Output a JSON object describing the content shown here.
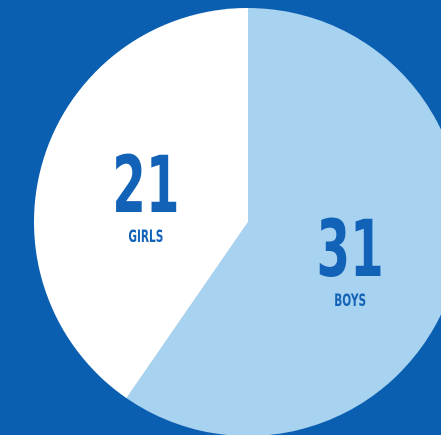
{
  "chart_data": {
    "type": "pie",
    "categories": [
      "GIRLS",
      "BOYS"
    ],
    "values": [
      21,
      31
    ],
    "colors": [
      "#ffffff",
      "#a8d3f0"
    ],
    "label_color": "#1262b8",
    "background": "#0b5fb1",
    "start": "top",
    "direction": "clockwise"
  }
}
